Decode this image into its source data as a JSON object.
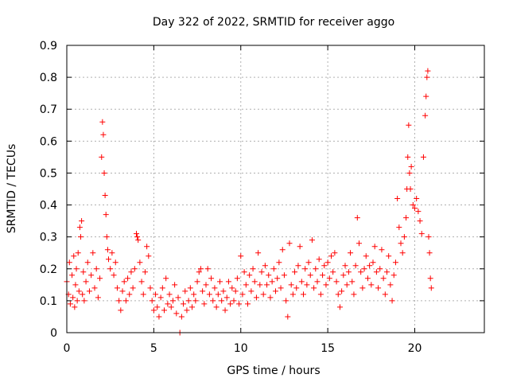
{
  "chart_data": {
    "type": "scatter",
    "title": "Day 322 of 2022, SRMTID for receiver aggo",
    "xlabel": "GPS time / hours",
    "ylabel": "SRMTID / TECUs",
    "xlim": [
      0,
      24
    ],
    "ylim": [
      0,
      0.9
    ],
    "xticks": [
      0,
      5,
      10,
      15,
      20
    ],
    "yticks": [
      0,
      0.1,
      0.2,
      0.3,
      0.4,
      0.5,
      0.6,
      0.7,
      0.8,
      0.9
    ],
    "xtick_labels": [
      "0",
      "5",
      "10",
      "15",
      "20"
    ],
    "ytick_labels": [
      "0",
      "0.1",
      "0.2",
      "0.3",
      "0.4",
      "0.5",
      "0.6",
      "0.7",
      "0.8",
      "0.9"
    ],
    "grid": true,
    "marker": "+",
    "color": "#ff0000",
    "series": [
      {
        "name": "SRMTID",
        "points": [
          [
            0.0,
            0.16
          ],
          [
            0.1,
            0.12
          ],
          [
            0.15,
            0.22
          ],
          [
            0.2,
            0.09
          ],
          [
            0.3,
            0.18
          ],
          [
            0.35,
            0.11
          ],
          [
            0.4,
            0.24
          ],
          [
            0.45,
            0.08
          ],
          [
            0.5,
            0.15
          ],
          [
            0.55,
            0.2
          ],
          [
            0.6,
            0.1
          ],
          [
            0.65,
            0.25
          ],
          [
            0.7,
            0.13
          ],
          [
            0.75,
            0.33
          ],
          [
            0.8,
            0.3
          ],
          [
            0.85,
            0.35
          ],
          [
            0.9,
            0.12
          ],
          [
            0.95,
            0.19
          ],
          [
            1.0,
            0.1
          ],
          [
            1.1,
            0.16
          ],
          [
            1.2,
            0.22
          ],
          [
            1.3,
            0.13
          ],
          [
            1.4,
            0.18
          ],
          [
            1.5,
            0.25
          ],
          [
            1.6,
            0.14
          ],
          [
            1.7,
            0.2
          ],
          [
            1.8,
            0.11
          ],
          [
            1.9,
            0.17
          ],
          [
            2.0,
            0.55
          ],
          [
            2.05,
            0.66
          ],
          [
            2.1,
            0.62
          ],
          [
            2.15,
            0.5
          ],
          [
            2.2,
            0.43
          ],
          [
            2.25,
            0.37
          ],
          [
            2.3,
            0.3
          ],
          [
            2.35,
            0.26
          ],
          [
            2.4,
            0.23
          ],
          [
            2.5,
            0.2
          ],
          [
            2.6,
            0.25
          ],
          [
            2.7,
            0.18
          ],
          [
            2.8,
            0.22
          ],
          [
            2.9,
            0.14
          ],
          [
            3.0,
            0.1
          ],
          [
            3.1,
            0.07
          ],
          [
            3.2,
            0.13
          ],
          [
            3.3,
            0.16
          ],
          [
            3.4,
            0.1
          ],
          [
            3.5,
            0.17
          ],
          [
            3.6,
            0.12
          ],
          [
            3.7,
            0.19
          ],
          [
            3.8,
            0.14
          ],
          [
            3.9,
            0.2
          ],
          [
            4.0,
            0.31
          ],
          [
            4.05,
            0.3
          ],
          [
            4.1,
            0.29
          ],
          [
            4.2,
            0.22
          ],
          [
            4.3,
            0.16
          ],
          [
            4.4,
            0.12
          ],
          [
            4.5,
            0.19
          ],
          [
            4.6,
            0.27
          ],
          [
            4.7,
            0.24
          ],
          [
            4.8,
            0.14
          ],
          [
            4.9,
            0.1
          ],
          [
            5.0,
            0.07
          ],
          [
            5.1,
            0.12
          ],
          [
            5.2,
            0.08
          ],
          [
            5.3,
            0.05
          ],
          [
            5.4,
            0.11
          ],
          [
            5.5,
            0.14
          ],
          [
            5.6,
            0.07
          ],
          [
            5.7,
            0.17
          ],
          [
            5.8,
            0.09
          ],
          [
            5.9,
            0.12
          ],
          [
            6.0,
            0.08
          ],
          [
            6.1,
            0.1
          ],
          [
            6.2,
            0.15
          ],
          [
            6.3,
            0.06
          ],
          [
            6.4,
            0.11
          ],
          [
            6.5,
            0.0
          ],
          [
            6.6,
            0.05
          ],
          [
            6.7,
            0.09
          ],
          [
            6.8,
            0.13
          ],
          [
            6.9,
            0.07
          ],
          [
            7.0,
            0.1
          ],
          [
            7.1,
            0.14
          ],
          [
            7.2,
            0.08
          ],
          [
            7.3,
            0.12
          ],
          [
            7.4,
            0.1
          ],
          [
            7.5,
            0.16
          ],
          [
            7.6,
            0.19
          ],
          [
            7.7,
            0.2
          ],
          [
            7.8,
            0.13
          ],
          [
            7.9,
            0.09
          ],
          [
            8.0,
            0.15
          ],
          [
            8.1,
            0.2
          ],
          [
            8.2,
            0.12
          ],
          [
            8.3,
            0.17
          ],
          [
            8.4,
            0.1
          ],
          [
            8.5,
            0.14
          ],
          [
            8.6,
            0.08
          ],
          [
            8.7,
            0.12
          ],
          [
            8.8,
            0.16
          ],
          [
            8.9,
            0.1
          ],
          [
            9.0,
            0.13
          ],
          [
            9.1,
            0.07
          ],
          [
            9.2,
            0.11
          ],
          [
            9.3,
            0.16
          ],
          [
            9.4,
            0.09
          ],
          [
            9.5,
            0.14
          ],
          [
            9.6,
            0.1
          ],
          [
            9.7,
            0.13
          ],
          [
            9.8,
            0.17
          ],
          [
            9.9,
            0.09
          ],
          [
            10.0,
            0.24
          ],
          [
            10.1,
            0.12
          ],
          [
            10.2,
            0.19
          ],
          [
            10.3,
            0.15
          ],
          [
            10.4,
            0.09
          ],
          [
            10.5,
            0.18
          ],
          [
            10.6,
            0.13
          ],
          [
            10.7,
            0.2
          ],
          [
            10.8,
            0.16
          ],
          [
            10.9,
            0.11
          ],
          [
            11.0,
            0.25
          ],
          [
            11.1,
            0.15
          ],
          [
            11.2,
            0.19
          ],
          [
            11.3,
            0.12
          ],
          [
            11.4,
            0.21
          ],
          [
            11.5,
            0.15
          ],
          [
            11.6,
            0.18
          ],
          [
            11.7,
            0.11
          ],
          [
            11.8,
            0.16
          ],
          [
            11.9,
            0.2
          ],
          [
            12.0,
            0.13
          ],
          [
            12.1,
            0.17
          ],
          [
            12.2,
            0.22
          ],
          [
            12.3,
            0.14
          ],
          [
            12.4,
            0.26
          ],
          [
            12.5,
            0.18
          ],
          [
            12.6,
            0.1
          ],
          [
            12.7,
            0.05
          ],
          [
            12.8,
            0.28
          ],
          [
            12.9,
            0.15
          ],
          [
            13.0,
            0.12
          ],
          [
            13.1,
            0.19
          ],
          [
            13.2,
            0.14
          ],
          [
            13.3,
            0.21
          ],
          [
            13.4,
            0.27
          ],
          [
            13.5,
            0.16
          ],
          [
            13.6,
            0.12
          ],
          [
            13.7,
            0.2
          ],
          [
            13.8,
            0.15
          ],
          [
            13.9,
            0.22
          ],
          [
            14.0,
            0.18
          ],
          [
            14.1,
            0.29
          ],
          [
            14.2,
            0.14
          ],
          [
            14.3,
            0.2
          ],
          [
            14.4,
            0.16
          ],
          [
            14.5,
            0.23
          ],
          [
            14.6,
            0.12
          ],
          [
            14.7,
            0.18
          ],
          [
            14.8,
            0.21
          ],
          [
            14.9,
            0.15
          ],
          [
            15.0,
            0.22
          ],
          [
            15.1,
            0.17
          ],
          [
            15.2,
            0.24
          ],
          [
            15.3,
            0.19
          ],
          [
            15.4,
            0.25
          ],
          [
            15.5,
            0.16
          ],
          [
            15.6,
            0.12
          ],
          [
            15.7,
            0.08
          ],
          [
            15.8,
            0.13
          ],
          [
            15.9,
            0.18
          ],
          [
            16.0,
            0.21
          ],
          [
            16.1,
            0.15
          ],
          [
            16.2,
            0.19
          ],
          [
            16.3,
            0.25
          ],
          [
            16.4,
            0.16
          ],
          [
            16.5,
            0.12
          ],
          [
            16.6,
            0.21
          ],
          [
            16.7,
            0.36
          ],
          [
            16.8,
            0.28
          ],
          [
            16.9,
            0.19
          ],
          [
            17.0,
            0.14
          ],
          [
            17.1,
            0.2
          ],
          [
            17.2,
            0.24
          ],
          [
            17.3,
            0.17
          ],
          [
            17.4,
            0.21
          ],
          [
            17.5,
            0.15
          ],
          [
            17.6,
            0.22
          ],
          [
            17.7,
            0.27
          ],
          [
            17.8,
            0.19
          ],
          [
            17.9,
            0.14
          ],
          [
            18.0,
            0.2
          ],
          [
            18.1,
            0.26
          ],
          [
            18.2,
            0.17
          ],
          [
            18.3,
            0.12
          ],
          [
            18.4,
            0.19
          ],
          [
            18.5,
            0.24
          ],
          [
            18.6,
            0.15
          ],
          [
            18.7,
            0.1
          ],
          [
            18.8,
            0.18
          ],
          [
            18.9,
            0.22
          ],
          [
            19.0,
            0.42
          ],
          [
            19.1,
            0.33
          ],
          [
            19.2,
            0.28
          ],
          [
            19.3,
            0.25
          ],
          [
            19.4,
            0.3
          ],
          [
            19.5,
            0.36
          ],
          [
            19.55,
            0.45
          ],
          [
            19.6,
            0.55
          ],
          [
            19.65,
            0.65
          ],
          [
            19.7,
            0.5
          ],
          [
            19.75,
            0.45
          ],
          [
            19.8,
            0.52
          ],
          [
            19.9,
            0.4
          ],
          [
            20.0,
            0.39
          ],
          [
            20.1,
            0.42
          ],
          [
            20.2,
            0.38
          ],
          [
            20.3,
            0.35
          ],
          [
            20.4,
            0.31
          ],
          [
            20.5,
            0.55
          ],
          [
            20.6,
            0.68
          ],
          [
            20.65,
            0.74
          ],
          [
            20.7,
            0.8
          ],
          [
            20.75,
            0.82
          ],
          [
            20.8,
            0.3
          ],
          [
            20.85,
            0.25
          ],
          [
            20.9,
            0.17
          ],
          [
            20.95,
            0.14
          ]
        ]
      }
    ]
  }
}
